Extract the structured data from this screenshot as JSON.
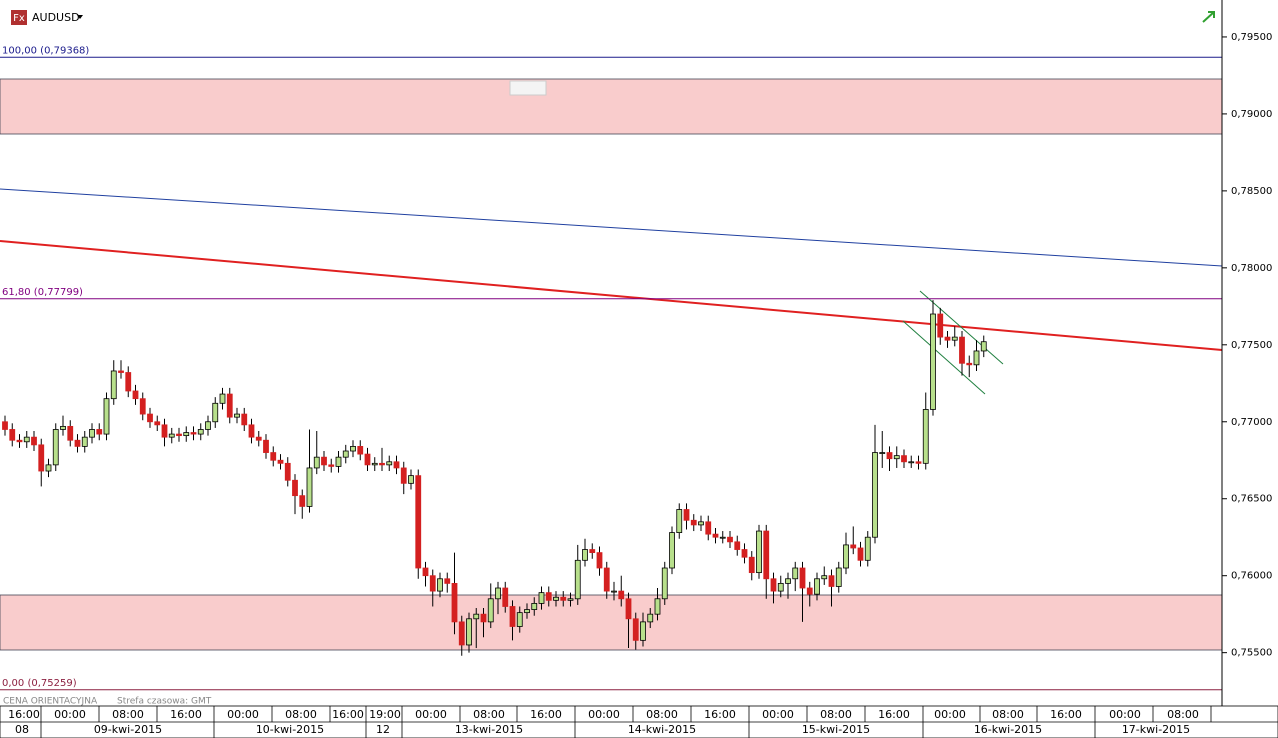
{
  "chart_data": {
    "type": "candlestick",
    "icon": "Fx",
    "title": "AUDUSD",
    "note": "CENA ORIENTACYJNA",
    "timezone": "Strefa czasowa: GMT",
    "ylim": [
      0.7516,
      0.7974
    ],
    "yticks": [
      {
        "value": 0.795,
        "label": "0,79500"
      },
      {
        "value": 0.79,
        "label": "0,79000"
      },
      {
        "value": 0.785,
        "label": "0,78500"
      },
      {
        "value": 0.78,
        "label": "0,78000"
      },
      {
        "value": 0.775,
        "label": "0,77500"
      },
      {
        "value": 0.77,
        "label": "0,77000"
      },
      {
        "value": 0.765,
        "label": "0,76500"
      },
      {
        "value": 0.76,
        "label": "0,76000"
      },
      {
        "value": 0.755,
        "label": "0,75500"
      }
    ],
    "levels": [
      {
        "label": "100,00 (0,79368)",
        "value": 0.79368,
        "color": "#1c1c8c"
      },
      {
        "label": "61,80 (0,77799)",
        "value": 0.77799,
        "color": "#800080"
      },
      {
        "label": "0,00 (0,75259)",
        "value": 0.75259,
        "color": "#8c2040"
      }
    ],
    "up_color": "#b8e08c",
    "down_color": "#d42020",
    "time_labels": [
      "16:00",
      "00:00",
      "08:00",
      "16:00",
      "00:00",
      "08:00",
      "16:00",
      "19:00",
      "00:00",
      "08:00",
      "16:00",
      "00:00",
      "08:00",
      "16:00",
      "00:00",
      "08:00",
      "16:00",
      "00:00",
      "08:00",
      "16:00",
      "00:00",
      "08:00"
    ],
    "date_labels": [
      "08",
      "09-kwi-2015",
      "10-kwi-2015",
      "12",
      "13-kwi-2015",
      "14-kwi-2015",
      "15-kwi-2015",
      "16-kwi-2015",
      "17-kwi-2015"
    ],
    "candles": [
      [
        0.77,
        0.7704,
        0.7691,
        0.7695
      ],
      [
        0.7695,
        0.7699,
        0.7684,
        0.7688
      ],
      [
        0.7688,
        0.7692,
        0.7683,
        0.7687
      ],
      [
        0.7687,
        0.7694,
        0.7683,
        0.769
      ],
      [
        0.769,
        0.7694,
        0.7681,
        0.7685
      ],
      [
        0.7685,
        0.7689,
        0.7658,
        0.7668
      ],
      [
        0.7668,
        0.7676,
        0.7664,
        0.7672
      ],
      [
        0.7672,
        0.7699,
        0.7668,
        0.7695
      ],
      [
        0.7695,
        0.7704,
        0.7691,
        0.7697
      ],
      [
        0.7697,
        0.7701,
        0.7684,
        0.7688
      ],
      [
        0.7688,
        0.7692,
        0.768,
        0.7684
      ],
      [
        0.7684,
        0.7694,
        0.768,
        0.769
      ],
      [
        0.769,
        0.7699,
        0.7686,
        0.7695
      ],
      [
        0.7695,
        0.7699,
        0.7688,
        0.7692
      ],
      [
        0.7692,
        0.7719,
        0.7688,
        0.7715
      ],
      [
        0.7715,
        0.774,
        0.7711,
        0.7733
      ],
      [
        0.7733,
        0.774,
        0.7728,
        0.7732
      ],
      [
        0.7732,
        0.7736,
        0.7716,
        0.772
      ],
      [
        0.772,
        0.7724,
        0.7711,
        0.7715
      ],
      [
        0.7715,
        0.7719,
        0.7701,
        0.7705
      ],
      [
        0.7705,
        0.7709,
        0.7696,
        0.77
      ],
      [
        0.77,
        0.7704,
        0.7694,
        0.7698
      ],
      [
        0.7698,
        0.7702,
        0.7684,
        0.769
      ],
      [
        0.769,
        0.7696,
        0.7686,
        0.7692
      ],
      [
        0.7692,
        0.7696,
        0.7687,
        0.7691
      ],
      [
        0.7691,
        0.7697,
        0.7687,
        0.7693
      ],
      [
        0.7693,
        0.7697,
        0.7688,
        0.7692
      ],
      [
        0.7692,
        0.7699,
        0.7688,
        0.7695
      ],
      [
        0.7695,
        0.7704,
        0.7691,
        0.77
      ],
      [
        0.77,
        0.7716,
        0.7696,
        0.7712
      ],
      [
        0.7712,
        0.7722,
        0.7708,
        0.7718
      ],
      [
        0.7718,
        0.7722,
        0.7699,
        0.7703
      ],
      [
        0.7703,
        0.7709,
        0.7699,
        0.7705
      ],
      [
        0.7705,
        0.7709,
        0.7694,
        0.7698
      ],
      [
        0.7698,
        0.7702,
        0.7686,
        0.769
      ],
      [
        0.769,
        0.7694,
        0.7684,
        0.7688
      ],
      [
        0.7688,
        0.7692,
        0.7676,
        0.768
      ],
      [
        0.768,
        0.7684,
        0.7671,
        0.7675
      ],
      [
        0.7675,
        0.7679,
        0.7669,
        0.7673
      ],
      [
        0.7673,
        0.7677,
        0.7658,
        0.7662
      ],
      [
        0.7662,
        0.7666,
        0.764,
        0.7652
      ],
      [
        0.7652,
        0.7656,
        0.7637,
        0.7645
      ],
      [
        0.7645,
        0.7695,
        0.7641,
        0.767
      ],
      [
        0.767,
        0.7694,
        0.7666,
        0.7677
      ],
      [
        0.7677,
        0.7681,
        0.7668,
        0.7672
      ],
      [
        0.7672,
        0.7676,
        0.7667,
        0.7671
      ],
      [
        0.7671,
        0.7681,
        0.7667,
        0.7677
      ],
      [
        0.7677,
        0.7685,
        0.7673,
        0.7681
      ],
      [
        0.7681,
        0.7688,
        0.7677,
        0.7684
      ],
      [
        0.7684,
        0.7688,
        0.7675,
        0.7679
      ],
      [
        0.7679,
        0.7683,
        0.7668,
        0.7672
      ],
      [
        0.7672,
        0.7677,
        0.7668,
        0.7673
      ],
      [
        0.7673,
        0.7683,
        0.7668,
        0.7672
      ],
      [
        0.7672,
        0.7678,
        0.7668,
        0.7674
      ],
      [
        0.7674,
        0.7678,
        0.7666,
        0.767
      ],
      [
        0.767,
        0.7674,
        0.7653,
        0.766
      ],
      [
        0.766,
        0.7669,
        0.7656,
        0.7665
      ],
      [
        0.7665,
        0.7669,
        0.7598,
        0.7605
      ],
      [
        0.7605,
        0.7609,
        0.7593,
        0.76
      ],
      [
        0.76,
        0.7604,
        0.758,
        0.759
      ],
      [
        0.759,
        0.7602,
        0.7586,
        0.7598
      ],
      [
        0.7598,
        0.7602,
        0.7589,
        0.7595
      ],
      [
        0.7595,
        0.7615,
        0.7562,
        0.757
      ],
      [
        0.757,
        0.7574,
        0.7548,
        0.7555
      ],
      [
        0.7555,
        0.7576,
        0.755,
        0.7572
      ],
      [
        0.7572,
        0.7579,
        0.7553,
        0.7575
      ],
      [
        0.7575,
        0.7579,
        0.756,
        0.757
      ],
      [
        0.757,
        0.7595,
        0.7566,
        0.7585
      ],
      [
        0.7585,
        0.7596,
        0.7575,
        0.7592
      ],
      [
        0.7592,
        0.7596,
        0.7576,
        0.758
      ],
      [
        0.758,
        0.7584,
        0.7558,
        0.7567
      ],
      [
        0.7567,
        0.758,
        0.7563,
        0.7576
      ],
      [
        0.7576,
        0.7582,
        0.7572,
        0.7578
      ],
      [
        0.7578,
        0.7586,
        0.7574,
        0.7582
      ],
      [
        0.7582,
        0.7593,
        0.7578,
        0.7589
      ],
      [
        0.7589,
        0.7593,
        0.758,
        0.7584
      ],
      [
        0.7584,
        0.759,
        0.758,
        0.7586
      ],
      [
        0.7586,
        0.759,
        0.758,
        0.7584
      ],
      [
        0.7584,
        0.7589,
        0.758,
        0.7585
      ],
      [
        0.7585,
        0.762,
        0.7581,
        0.761
      ],
      [
        0.761,
        0.7624,
        0.7606,
        0.7617
      ],
      [
        0.7617,
        0.7621,
        0.7611,
        0.7615
      ],
      [
        0.7615,
        0.7619,
        0.76,
        0.7605
      ],
      [
        0.7605,
        0.7609,
        0.7585,
        0.759
      ],
      [
        0.759,
        0.7596,
        0.7584,
        0.759
      ],
      [
        0.759,
        0.76,
        0.758,
        0.7585
      ],
      [
        0.7585,
        0.7589,
        0.7553,
        0.7572
      ],
      [
        0.7572,
        0.7576,
        0.7552,
        0.7558
      ],
      [
        0.7558,
        0.7576,
        0.7554,
        0.757
      ],
      [
        0.757,
        0.7579,
        0.7566,
        0.7575
      ],
      [
        0.7575,
        0.7592,
        0.7571,
        0.7585
      ],
      [
        0.7585,
        0.7609,
        0.7581,
        0.7605
      ],
      [
        0.7605,
        0.7632,
        0.7601,
        0.7628
      ],
      [
        0.7628,
        0.7647,
        0.7624,
        0.7643
      ],
      [
        0.7643,
        0.7647,
        0.763,
        0.7636
      ],
      [
        0.7636,
        0.764,
        0.7629,
        0.7633
      ],
      [
        0.7633,
        0.7639,
        0.7629,
        0.7635
      ],
      [
        0.7635,
        0.7639,
        0.7623,
        0.7627
      ],
      [
        0.7627,
        0.7631,
        0.7621,
        0.7625
      ],
      [
        0.7625,
        0.7629,
        0.7621,
        0.7625
      ],
      [
        0.7625,
        0.7629,
        0.7618,
        0.7622
      ],
      [
        0.7622,
        0.7626,
        0.7613,
        0.7617
      ],
      [
        0.7617,
        0.7621,
        0.7608,
        0.7612
      ],
      [
        0.7612,
        0.7616,
        0.7597,
        0.7602
      ],
      [
        0.7602,
        0.7633,
        0.7598,
        0.7629
      ],
      [
        0.7629,
        0.7633,
        0.7585,
        0.7598
      ],
      [
        0.7598,
        0.7602,
        0.7582,
        0.759
      ],
      [
        0.759,
        0.76,
        0.7586,
        0.7595
      ],
      [
        0.7595,
        0.7602,
        0.7585,
        0.7598
      ],
      [
        0.7598,
        0.7609,
        0.759,
        0.7605
      ],
      [
        0.7605,
        0.7609,
        0.757,
        0.7592
      ],
      [
        0.7592,
        0.7596,
        0.758,
        0.7588
      ],
      [
        0.7588,
        0.7602,
        0.7584,
        0.7598
      ],
      [
        0.7598,
        0.7606,
        0.7594,
        0.76
      ],
      [
        0.76,
        0.7604,
        0.758,
        0.7593
      ],
      [
        0.7593,
        0.7609,
        0.7589,
        0.7605
      ],
      [
        0.7605,
        0.7628,
        0.7601,
        0.762
      ],
      [
        0.762,
        0.7632,
        0.7614,
        0.7618
      ],
      [
        0.7618,
        0.7622,
        0.7606,
        0.761
      ],
      [
        0.761,
        0.7629,
        0.7606,
        0.7625
      ],
      [
        0.7625,
        0.7698,
        0.7621,
        0.768
      ],
      [
        0.768,
        0.7694,
        0.767,
        0.768
      ],
      [
        0.768,
        0.7684,
        0.7668,
        0.7676
      ],
      [
        0.7676,
        0.7684,
        0.767,
        0.7678
      ],
      [
        0.7678,
        0.7682,
        0.767,
        0.7674
      ],
      [
        0.7674,
        0.7678,
        0.767,
        0.7674
      ],
      [
        0.7674,
        0.7678,
        0.7669,
        0.7673
      ],
      [
        0.7673,
        0.7719,
        0.7669,
        0.7708
      ],
      [
        0.7708,
        0.7779,
        0.7704,
        0.777
      ],
      [
        0.777,
        0.7774,
        0.775,
        0.7755
      ],
      [
        0.7755,
        0.7759,
        0.7748,
        0.7753
      ],
      [
        0.7753,
        0.7762,
        0.7749,
        0.7755
      ],
      [
        0.7755,
        0.7759,
        0.773,
        0.7738
      ],
      [
        0.7738,
        0.7743,
        0.7729,
        0.7737
      ],
      [
        0.7737,
        0.7753,
        0.7733,
        0.7746
      ],
      [
        0.7746,
        0.7756,
        0.7742,
        0.7752
      ]
    ]
  }
}
